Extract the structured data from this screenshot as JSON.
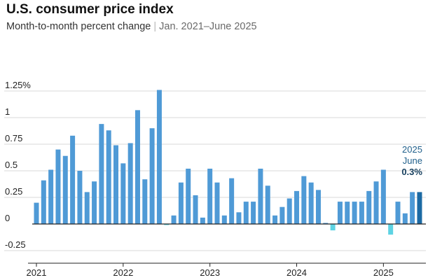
{
  "header": {
    "title": "U.S. consumer price index",
    "subtitle_main": "Month-to-month percent change",
    "subtitle_sep": "|",
    "subtitle_range": "Jan. 2021–June 2025"
  },
  "colors": {
    "positive": "#4f9ad6",
    "negative": "#5ed3e3",
    "highlight": "#1c6aa4",
    "grid": "#d9d9d9",
    "axis": "#222222"
  },
  "chart_data": {
    "type": "bar",
    "categories": [
      "2021-01",
      "2021-02",
      "2021-03",
      "2021-04",
      "2021-05",
      "2021-06",
      "2021-07",
      "2021-08",
      "2021-09",
      "2021-10",
      "2021-11",
      "2021-12",
      "2022-01",
      "2022-02",
      "2022-03",
      "2022-04",
      "2022-05",
      "2022-06",
      "2022-07",
      "2022-08",
      "2022-09",
      "2022-10",
      "2022-11",
      "2022-12",
      "2023-01",
      "2023-02",
      "2023-03",
      "2023-04",
      "2023-05",
      "2023-06",
      "2023-07",
      "2023-08",
      "2023-09",
      "2023-10",
      "2023-11",
      "2023-12",
      "2024-01",
      "2024-02",
      "2024-03",
      "2024-04",
      "2024-05",
      "2024-06",
      "2024-07",
      "2024-08",
      "2024-09",
      "2024-10",
      "2024-11",
      "2024-12",
      "2025-01",
      "2025-02",
      "2025-03",
      "2025-04",
      "2025-05",
      "2025-06"
    ],
    "values": [
      0.2,
      0.41,
      0.51,
      0.7,
      0.64,
      0.83,
      0.5,
      0.3,
      0.4,
      0.94,
      0.88,
      0.74,
      0.57,
      0.76,
      1.07,
      0.42,
      0.9,
      1.26,
      -0.01,
      0.08,
      0.39,
      0.52,
      0.27,
      0.06,
      0.52,
      0.39,
      0.08,
      0.43,
      0.11,
      0.21,
      0.21,
      0.52,
      0.36,
      0.08,
      0.16,
      0.24,
      0.31,
      0.45,
      0.39,
      0.32,
      0.01,
      -0.06,
      0.21,
      0.21,
      0.21,
      0.21,
      0.31,
      0.4,
      0.51,
      -0.1,
      0.21,
      0.1,
      0.3,
      0.3
    ],
    "ylim": [
      -0.25,
      1.25
    ],
    "yticks": [
      -0.25,
      0,
      0.25,
      0.5,
      0.75,
      1,
      1.25
    ],
    "ytick_labels": [
      "-0.25",
      "0",
      "0.25",
      "0.5",
      "0.75",
      "1",
      "1.25%"
    ],
    "xtick_labels": [
      {
        "label": "2021",
        "category": "2021-01"
      },
      {
        "label": "2022",
        "category": "2022-01"
      },
      {
        "label": "2023",
        "category": "2023-01"
      },
      {
        "label": "2024",
        "category": "2024-01"
      },
      {
        "label": "2025",
        "category": "2025-01"
      }
    ],
    "grid": true,
    "annotation": {
      "category": "2025-06",
      "year": "2025",
      "month": "June",
      "value_label": "0.3%"
    }
  }
}
